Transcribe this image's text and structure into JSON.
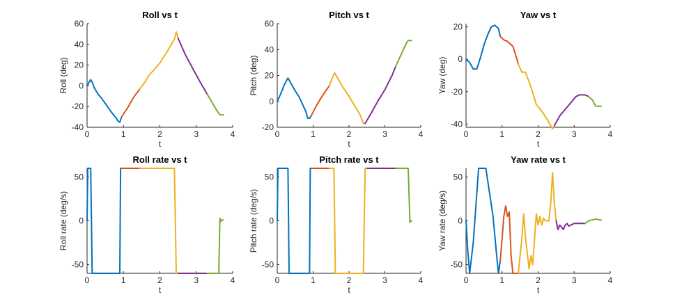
{
  "colors": [
    "#0072BD",
    "#D95319",
    "#EDB120",
    "#7E2F8E",
    "#77AC30"
  ],
  "chart_data": [
    {
      "type": "line",
      "title": "Roll vs t",
      "xlabel": "t",
      "ylabel": "Roll (deg)",
      "xlim": [
        0,
        4
      ],
      "ylim": [
        -40,
        60
      ],
      "xticks": [
        0,
        1,
        2,
        3,
        4
      ],
      "yticks": [
        -40,
        -20,
        0,
        20,
        40,
        60
      ],
      "segments": [
        {
          "x": [
            0,
            0.05,
            0.1,
            0.15,
            0.2,
            0.3,
            0.4,
            0.5,
            0.6,
            0.7,
            0.8,
            0.85,
            0.9,
            0.95
          ],
          "y": [
            0,
            3,
            6,
            3,
            -2,
            -8,
            -12,
            -17,
            -22,
            -27,
            -31,
            -34,
            -35,
            -30
          ]
        },
        {
          "x": [
            0.95,
            1.1,
            1.2,
            1.3,
            1.45
          ],
          "y": [
            -30,
            -22,
            -16,
            -10,
            -3
          ]
        },
        {
          "x": [
            1.45,
            1.6,
            1.7,
            1.8,
            2.0,
            2.2,
            2.4,
            2.45,
            2.5
          ],
          "y": [
            -3,
            4,
            10,
            14,
            22,
            33,
            45,
            52,
            46
          ]
        },
        {
          "x": [
            2.5,
            2.7,
            2.9,
            3.1,
            3.3
          ],
          "y": [
            46,
            30,
            17,
            4,
            -8
          ]
        },
        {
          "x": [
            3.3,
            3.45,
            3.55,
            3.65,
            3.75
          ],
          "y": [
            -8,
            -17,
            -23,
            -28,
            -28
          ]
        }
      ]
    },
    {
      "type": "line",
      "title": "Pitch vs t",
      "xlabel": "t",
      "ylabel": "Pitch (deg)",
      "xlim": [
        0,
        4
      ],
      "ylim": [
        -20,
        60
      ],
      "xticks": [
        0,
        1,
        2,
        3,
        4
      ],
      "yticks": [
        -20,
        0,
        20,
        40,
        60
      ],
      "segments": [
        {
          "x": [
            0,
            0.1,
            0.2,
            0.3,
            0.4,
            0.5,
            0.6,
            0.7,
            0.8,
            0.85,
            0.9,
            0.95
          ],
          "y": [
            0,
            6,
            13,
            18,
            13,
            8,
            4,
            -2,
            -8,
            -13,
            -13,
            -11
          ]
        },
        {
          "x": [
            0.95,
            1.1,
            1.25,
            1.45
          ],
          "y": [
            -11,
            -3,
            4,
            12
          ]
        },
        {
          "x": [
            1.45,
            1.55,
            1.6,
            1.7,
            1.85,
            2.0,
            2.15,
            2.3,
            2.4,
            2.45
          ],
          "y": [
            12,
            19,
            22,
            17,
            10,
            4,
            -3,
            -10,
            -17,
            -17
          ]
        },
        {
          "x": [
            2.45,
            2.6,
            2.8,
            3.0,
            3.2,
            3.3
          ],
          "y": [
            -17,
            -10,
            0,
            9,
            20,
            27
          ]
        },
        {
          "x": [
            3.3,
            3.45,
            3.6,
            3.65,
            3.75
          ],
          "y": [
            27,
            36,
            45,
            47,
            47
          ]
        }
      ]
    },
    {
      "type": "line",
      "title": "Yaw vs t",
      "xlabel": "t",
      "ylabel": "Yaw (deg)",
      "xlim": [
        0,
        4
      ],
      "ylim": [
        -42,
        22
      ],
      "xticks": [
        0,
        1,
        2,
        3,
        4
      ],
      "yticks": [
        -40,
        -20,
        0,
        20
      ],
      "segments": [
        {
          "x": [
            0,
            0.05,
            0.1,
            0.2,
            0.3,
            0.4,
            0.5,
            0.6,
            0.7,
            0.8,
            0.9,
            0.95
          ],
          "y": [
            0,
            -1,
            -2,
            -6,
            -6,
            1,
            9,
            15,
            20,
            21,
            19,
            14
          ]
        },
        {
          "x": [
            0.95,
            1.05,
            1.15,
            1.3,
            1.4,
            1.45
          ],
          "y": [
            14,
            12,
            11,
            8,
            1,
            -3
          ]
        },
        {
          "x": [
            1.45,
            1.55,
            1.65,
            1.8,
            1.95,
            2.1,
            2.25,
            2.35,
            2.4,
            2.45
          ],
          "y": [
            -3,
            -8,
            -8,
            -17,
            -28,
            -32,
            -37,
            -41,
            -43,
            -41
          ]
        },
        {
          "x": [
            2.45,
            2.6,
            2.75,
            2.9,
            3.05,
            3.15,
            3.3,
            3.4
          ],
          "y": [
            -41,
            -35,
            -31,
            -27,
            -23,
            -22,
            -22,
            -23
          ]
        },
        {
          "x": [
            3.4,
            3.5,
            3.6,
            3.7,
            3.75
          ],
          "y": [
            -23,
            -25,
            -29,
            -29,
            -29
          ]
        }
      ]
    },
    {
      "type": "line",
      "title": "Roll rate vs t",
      "xlabel": "t",
      "ylabel": "Roll rate (deg/s)",
      "xlim": [
        0,
        4
      ],
      "ylim": [
        -60,
        60
      ],
      "xticks": [
        0,
        1,
        2,
        3,
        4
      ],
      "yticks": [
        -50,
        0,
        50
      ],
      "segments": [
        {
          "x": [
            0,
            0.02,
            0.1,
            0.12,
            0.14,
            0.9,
            0.92,
            0.95
          ],
          "y": [
            0,
            60,
            60,
            0,
            -60,
            -60,
            60,
            60
          ]
        },
        {
          "x": [
            0.95,
            1.45
          ],
          "y": [
            60,
            60
          ]
        },
        {
          "x": [
            1.45,
            2.4,
            2.45,
            2.5
          ],
          "y": [
            60,
            60,
            -60,
            -60
          ]
        },
        {
          "x": [
            2.5,
            3.3
          ],
          "y": [
            -60,
            -60
          ]
        },
        {
          "x": [
            3.3,
            3.62,
            3.65,
            3.67,
            3.7,
            3.75
          ],
          "y": [
            -60,
            -60,
            3,
            -1,
            1,
            1
          ]
        }
      ]
    },
    {
      "type": "line",
      "title": "Pitch rate vs t",
      "xlabel": "t",
      "ylabel": "Pitch rate (deg/s)",
      "xlim": [
        0,
        4
      ],
      "ylim": [
        -60,
        60
      ],
      "xticks": [
        0,
        1,
        2,
        3,
        4
      ],
      "yticks": [
        -50,
        0,
        50
      ],
      "segments": [
        {
          "x": [
            0,
            0.02,
            0.3,
            0.33,
            0.9,
            0.92,
            0.95
          ],
          "y": [
            0,
            60,
            60,
            -60,
            -60,
            60,
            60
          ]
        },
        {
          "x": [
            0.95,
            1.45
          ],
          "y": [
            60,
            60
          ]
        },
        {
          "x": [
            1.45,
            1.58,
            1.62,
            2.4,
            2.45,
            2.5
          ],
          "y": [
            60,
            60,
            -60,
            -60,
            60,
            60
          ]
        },
        {
          "x": [
            2.5,
            3.3
          ],
          "y": [
            60,
            60
          ]
        },
        {
          "x": [
            3.3,
            3.65,
            3.7,
            3.72,
            3.75
          ],
          "y": [
            60,
            60,
            -2,
            0,
            0
          ]
        }
      ]
    },
    {
      "type": "line",
      "title": "Yaw rate vs t",
      "xlabel": "t",
      "ylabel": "Yaw rate (deg/s)",
      "xlim": [
        0,
        4
      ],
      "ylim": [
        -60,
        60
      ],
      "xticks": [
        0,
        1,
        2,
        3,
        4
      ],
      "yticks": [
        -50,
        0,
        50
      ],
      "segments": [
        {
          "x": [
            0,
            0.05,
            0.1,
            0.2,
            0.35,
            0.55,
            0.75,
            0.85,
            0.9,
            0.95
          ],
          "y": [
            0,
            -35,
            -60,
            -25,
            60,
            60,
            5,
            -40,
            -60,
            -45
          ]
        },
        {
          "x": [
            0.95,
            1.0,
            1.05,
            1.1,
            1.15,
            1.2,
            1.25,
            1.3,
            1.45
          ],
          "y": [
            -45,
            -20,
            5,
            17,
            5,
            10,
            -40,
            -60,
            -60
          ]
        },
        {
          "x": [
            1.45,
            1.55,
            1.6,
            1.65,
            1.75,
            1.8,
            1.85,
            1.95,
            2.0,
            2.05,
            2.1,
            2.15,
            2.2,
            2.3,
            2.35,
            2.4,
            2.45,
            2.5
          ],
          "y": [
            -60,
            -20,
            8,
            -20,
            -55,
            -40,
            -50,
            8,
            -5,
            5,
            -5,
            3,
            0,
            0,
            20,
            55,
            20,
            0
          ]
        },
        {
          "x": [
            2.5,
            2.55,
            2.6,
            2.65,
            2.7,
            2.75,
            2.8,
            2.85,
            2.95,
            3.0,
            3.1,
            3.3
          ],
          "y": [
            0,
            -10,
            -5,
            -7,
            -10,
            -5,
            -3,
            -6,
            -4,
            -3,
            -3,
            -3
          ]
        },
        {
          "x": [
            3.3,
            3.4,
            3.5,
            3.6,
            3.7,
            3.75
          ],
          "y": [
            -3,
            0,
            1,
            2,
            1,
            1
          ]
        }
      ]
    }
  ]
}
